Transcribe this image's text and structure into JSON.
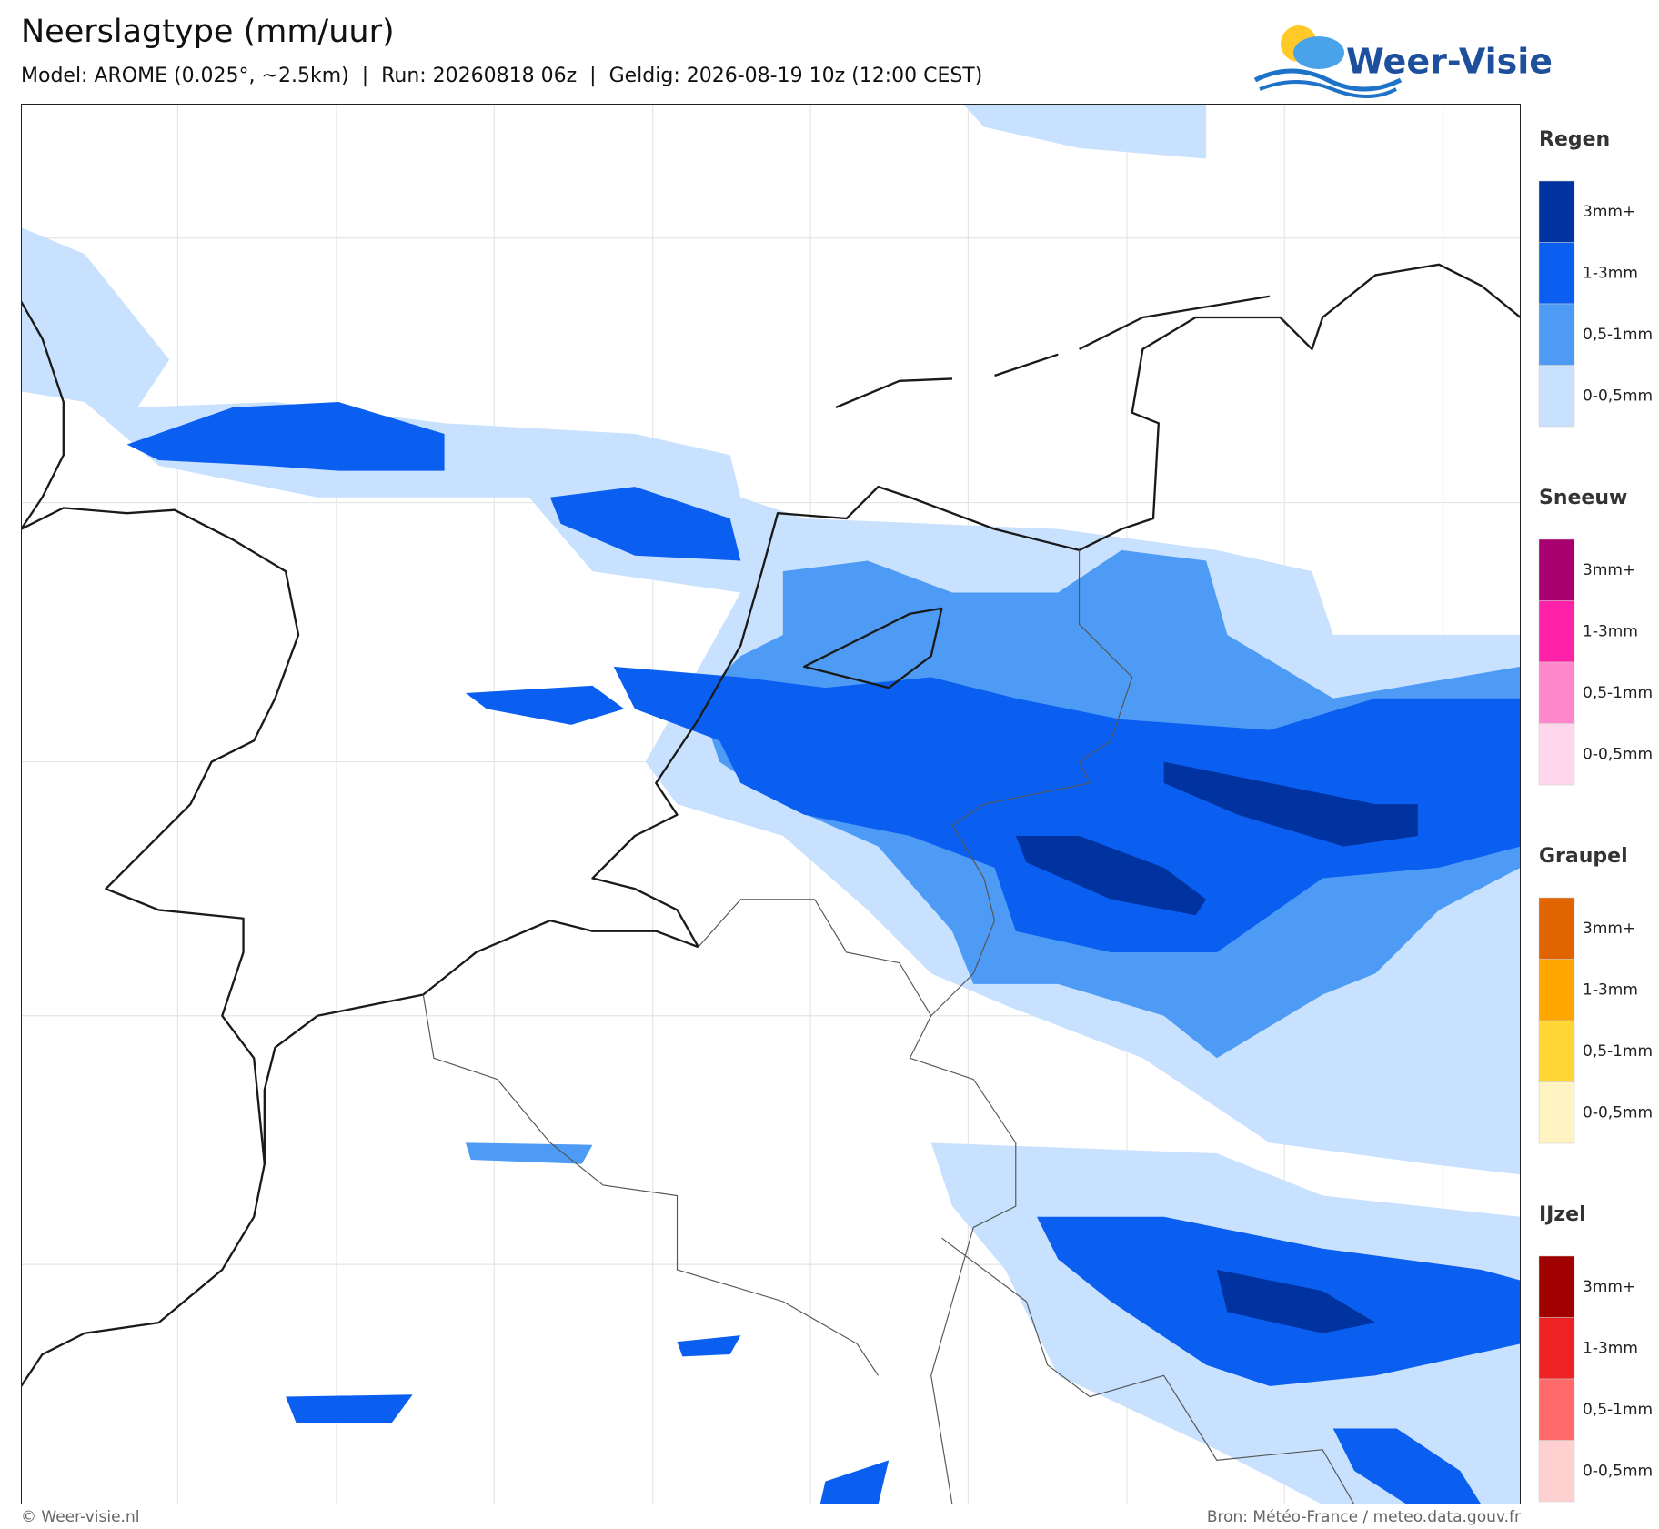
{
  "header": {
    "title": "Neerslagtype (mm/uur)",
    "subtitle": "Model: AROME (0.025°, ~2.5km)  |  Run: 20260818 06z  |  Geldig: 2026-08-19 10z (12:00 CEST)"
  },
  "logo": {
    "text": "Weer-Visie"
  },
  "legend": {
    "groups": [
      {
        "title": "Regen",
        "items": [
          {
            "label": "3mm+",
            "color": "#0033a0"
          },
          {
            "label": "1-3mm",
            "color": "#0a5ef0"
          },
          {
            "label": "0,5-1mm",
            "color": "#4d9bf5"
          },
          {
            "label": "0-0,5mm",
            "color": "#c8e1ff"
          }
        ]
      },
      {
        "title": "Sneeuw",
        "items": [
          {
            "label": "3mm+",
            "color": "#a8006e"
          },
          {
            "label": "1-3mm",
            "color": "#ff22a8"
          },
          {
            "label": "0,5-1mm",
            "color": "#ff88cc"
          },
          {
            "label": "0-0,5mm",
            "color": "#ffd6ec"
          }
        ]
      },
      {
        "title": "Graupel",
        "items": [
          {
            "label": "3mm+",
            "color": "#e06500"
          },
          {
            "label": "1-3mm",
            "color": "#ffa600"
          },
          {
            "label": "0,5-1mm",
            "color": "#ffd633"
          },
          {
            "label": "0-0,5mm",
            "color": "#fff3c2"
          }
        ]
      },
      {
        "title": "IJzel",
        "items": [
          {
            "label": "3mm+",
            "color": "#a00000"
          },
          {
            "label": "1-3mm",
            "color": "#ee2222"
          },
          {
            "label": "0,5-1mm",
            "color": "#ff6b6b"
          },
          {
            "label": "0-0,5mm",
            "color": "#ffd0d0"
          }
        ]
      }
    ]
  },
  "footer": {
    "left": "© Weer-visie.nl",
    "right": "Bron: Météo-France / meteo.data.gouv.fr"
  }
}
